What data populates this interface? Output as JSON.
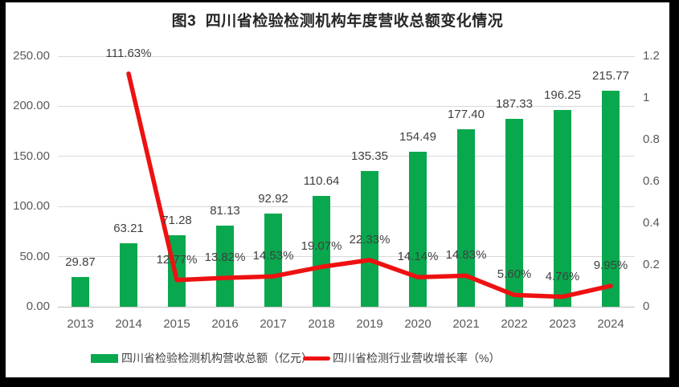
{
  "title": "图3  四川省检验检测机构年度营收总额变化情况",
  "colors": {
    "bar_green": "#09a84e",
    "line_red": "#ee1111",
    "gridline": "#d9d9d9",
    "axis_line": "#bfbfbf",
    "axis_text": "#595959",
    "label_text": "#404040",
    "frame_black": "#000000",
    "background": "#ffffff"
  },
  "chart_data": {
    "type": "bar",
    "subtype": "combo-bar-line",
    "title": "图3  四川省检验检测机构年度营收总额变化情况",
    "categories": [
      "2013",
      "2014",
      "2015",
      "2016",
      "2017",
      "2018",
      "2019",
      "2020",
      "2021",
      "2022",
      "2023",
      "2024"
    ],
    "series": [
      {
        "name": "四川省检验检测机构营收总额（亿元）",
        "type": "bar",
        "axis": "left",
        "color": "#09a84e",
        "values": [
          29.87,
          63.21,
          71.28,
          81.13,
          92.92,
          110.64,
          135.35,
          154.49,
          177.4,
          187.33,
          196.25,
          215.77
        ],
        "labels": [
          "29.87",
          "63.21",
          "71.28",
          "81.13",
          "92.92",
          "110.64",
          "135.35",
          "154.49",
          "177.40",
          "187.33",
          "196.25",
          "215.77"
        ]
      },
      {
        "name": "四川省检测行业营收增长率（%）",
        "type": "line",
        "axis": "right",
        "color": "#ee1111",
        "values": [
          null,
          1.1163,
          0.1277,
          0.1382,
          0.1453,
          0.1907,
          0.2233,
          0.1414,
          0.1483,
          0.056,
          0.0476,
          0.0995
        ],
        "labels": [
          null,
          "111.63%",
          "12.77%",
          "13.82%",
          "14.53%",
          "19.07%",
          "22.33%",
          "14.14%",
          "14.83%",
          "5.60%",
          "4.76%",
          "9.95%"
        ]
      }
    ],
    "left_axis": {
      "min": 0,
      "max": 250,
      "ticks": [
        "0.00",
        "50.00",
        "100.00",
        "150.00",
        "200.00",
        "250.00"
      ]
    },
    "right_axis": {
      "min": 0,
      "max": 1.2,
      "ticks": [
        "0",
        "0.2",
        "0.4",
        "0.6",
        "0.8",
        "1",
        "1.2"
      ]
    },
    "grid": "horizontal",
    "legend_position": "bottom"
  }
}
